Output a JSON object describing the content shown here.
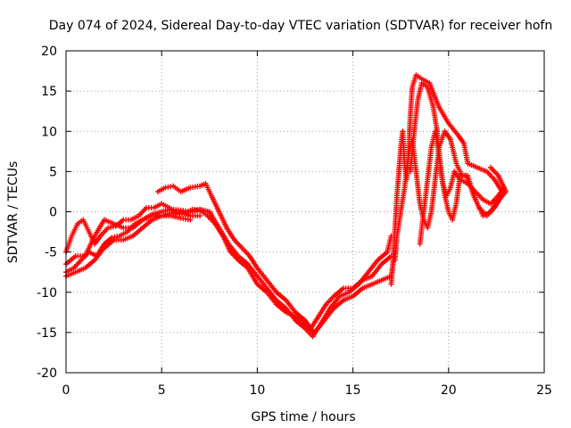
{
  "chart_data": {
    "type": "scatter",
    "title": "Day 074 of 2024, Sidereal Day-to-day VTEC variation (SDTVAR) for receiver hofn",
    "xlabel": "GPS time / hours",
    "ylabel": "SDTVAR / TECUs",
    "xlim": [
      0,
      25
    ],
    "ylim": [
      -20,
      20
    ],
    "xticks": [
      0,
      5,
      10,
      15,
      20,
      25
    ],
    "yticks": [
      -20,
      -15,
      -10,
      -5,
      0,
      5,
      10,
      15,
      20
    ],
    "grid": true,
    "marker": "plus",
    "color": "#ff0000",
    "series": [
      {
        "name": "satellite-track-1",
        "points": [
          [
            0.0,
            -5.0
          ],
          [
            0.3,
            -3.0
          ],
          [
            0.6,
            -1.5
          ],
          [
            0.9,
            -1.0
          ],
          [
            1.2,
            -2.5
          ],
          [
            1.5,
            -4.0
          ],
          [
            1.8,
            -3.0
          ],
          [
            2.2,
            -2.0
          ],
          [
            2.6,
            -1.8
          ],
          [
            3.0,
            -1.0
          ],
          [
            3.4,
            -1.0
          ],
          [
            3.8,
            -0.5
          ],
          [
            4.2,
            0.5
          ],
          [
            4.6,
            0.5
          ],
          [
            5.0,
            1.0
          ],
          [
            5.4,
            0.5
          ],
          [
            5.8,
            -0.2
          ],
          [
            6.2,
            -0.3
          ],
          [
            6.6,
            0.3
          ],
          [
            7.0,
            0.2
          ]
        ]
      },
      {
        "name": "satellite-track-2",
        "points": [
          [
            0.0,
            -7.5
          ],
          [
            0.4,
            -7.0
          ],
          [
            0.8,
            -6.0
          ],
          [
            1.2,
            -5.0
          ],
          [
            1.6,
            -5.5
          ],
          [
            2.0,
            -4.0
          ],
          [
            2.4,
            -3.2
          ],
          [
            2.8,
            -3.0
          ],
          [
            3.2,
            -2.5
          ],
          [
            3.6,
            -1.5
          ],
          [
            4.0,
            -1.0
          ],
          [
            4.5,
            -0.3
          ],
          [
            5.0,
            0.0
          ],
          [
            5.5,
            0.3
          ],
          [
            6.0,
            0.2
          ],
          [
            6.5,
            0.0
          ],
          [
            7.0,
            0.3
          ],
          [
            7.5,
            0.0
          ]
        ]
      },
      {
        "name": "satellite-track-3",
        "points": [
          [
            0.0,
            -6.5
          ],
          [
            0.5,
            -5.5
          ],
          [
            1.0,
            -5.5
          ],
          [
            1.5,
            -3.0
          ],
          [
            2.0,
            -1.0
          ],
          [
            2.5,
            -1.5
          ],
          [
            3.0,
            -2.0
          ],
          [
            3.5,
            -2.0
          ],
          [
            4.0,
            -1.0
          ],
          [
            4.5,
            -0.5
          ],
          [
            5.0,
            -0.5
          ],
          [
            5.5,
            -0.2
          ],
          [
            6.0,
            0.0
          ],
          [
            6.5,
            -0.5
          ],
          [
            7.0,
            -0.5
          ]
        ]
      },
      {
        "name": "satellite-track-4",
        "points": [
          [
            0.0,
            -8.0
          ],
          [
            0.5,
            -7.5
          ],
          [
            1.0,
            -7.0
          ],
          [
            1.5,
            -6.0
          ],
          [
            2.0,
            -4.5
          ],
          [
            2.5,
            -3.5
          ],
          [
            3.0,
            -3.5
          ],
          [
            3.5,
            -3.0
          ],
          [
            4.0,
            -2.0
          ],
          [
            4.5,
            -1.0
          ],
          [
            5.0,
            -0.5
          ],
          [
            5.5,
            -0.5
          ],
          [
            6.0,
            -0.8
          ],
          [
            6.5,
            -1.0
          ]
        ]
      },
      {
        "name": "satellite-track-5",
        "points": [
          [
            4.8,
            2.5
          ],
          [
            5.2,
            3.0
          ],
          [
            5.6,
            3.2
          ],
          [
            6.0,
            2.5
          ],
          [
            6.5,
            3.0
          ],
          [
            7.0,
            3.2
          ],
          [
            7.3,
            3.5
          ],
          [
            7.6,
            2.0
          ],
          [
            8.0,
            0.0
          ],
          [
            8.4,
            -2.0
          ],
          [
            8.8,
            -3.5
          ],
          [
            9.2,
            -4.5
          ],
          [
            9.6,
            -5.5
          ],
          [
            10.0,
            -7.0
          ],
          [
            10.5,
            -8.5
          ],
          [
            11.0,
            -10.0
          ],
          [
            11.5,
            -11.0
          ],
          [
            12.0,
            -12.5
          ],
          [
            12.5,
            -13.5
          ],
          [
            12.8,
            -14.5
          ],
          [
            13.2,
            -13.0
          ],
          [
            13.6,
            -11.5
          ],
          [
            14.0,
            -10.5
          ],
          [
            14.5,
            -9.5
          ],
          [
            15.0,
            -9.5
          ],
          [
            15.5,
            -8.5
          ],
          [
            16.0,
            -8.0
          ],
          [
            16.5,
            -6.5
          ],
          [
            17.0,
            -5.5
          ]
        ]
      },
      {
        "name": "satellite-track-6",
        "points": [
          [
            7.0,
            0.2
          ],
          [
            7.4,
            -0.5
          ],
          [
            7.8,
            -1.5
          ],
          [
            8.2,
            -3.0
          ],
          [
            8.6,
            -5.0
          ],
          [
            9.0,
            -6.0
          ],
          [
            9.5,
            -7.0
          ],
          [
            10.0,
            -9.0
          ],
          [
            10.5,
            -10.0
          ],
          [
            11.0,
            -11.5
          ],
          [
            11.5,
            -12.5
          ],
          [
            12.0,
            -13.0
          ],
          [
            12.5,
            -14.0
          ],
          [
            13.0,
            -15.0
          ],
          [
            13.5,
            -13.5
          ],
          [
            14.0,
            -12.0
          ],
          [
            14.5,
            -11.0
          ],
          [
            15.0,
            -10.5
          ],
          [
            15.5,
            -9.5
          ],
          [
            16.0,
            -9.0
          ],
          [
            16.5,
            -8.5
          ],
          [
            17.0,
            -8.0
          ],
          [
            17.2,
            -5.0
          ]
        ]
      },
      {
        "name": "satellite-track-7",
        "points": [
          [
            7.5,
            0.0
          ],
          [
            8.0,
            -2.0
          ],
          [
            8.5,
            -4.0
          ],
          [
            9.0,
            -5.5
          ],
          [
            9.5,
            -6.5
          ],
          [
            10.0,
            -8.0
          ],
          [
            10.5,
            -9.5
          ],
          [
            11.0,
            -11.0
          ],
          [
            11.5,
            -12.0
          ],
          [
            12.0,
            -13.5
          ],
          [
            12.5,
            -14.5
          ],
          [
            12.9,
            -15.5
          ],
          [
            13.3,
            -14.0
          ],
          [
            13.8,
            -12.0
          ],
          [
            14.3,
            -10.5
          ],
          [
            14.8,
            -10.0
          ],
          [
            15.3,
            -9.0
          ],
          [
            15.8,
            -7.5
          ],
          [
            16.3,
            -6.0
          ],
          [
            16.8,
            -5.0
          ],
          [
            17.0,
            -3.0
          ]
        ]
      },
      {
        "name": "satellite-track-8",
        "points": [
          [
            17.0,
            -9.0
          ],
          [
            17.1,
            -6.0
          ],
          [
            17.2,
            -2.0
          ],
          [
            17.3,
            2.0
          ],
          [
            17.4,
            5.0
          ],
          [
            17.5,
            8.0
          ],
          [
            17.6,
            10.0
          ],
          [
            17.7,
            6.0
          ],
          [
            17.8,
            4.0
          ],
          [
            17.9,
            7.0
          ],
          [
            18.0,
            12.0
          ],
          [
            18.1,
            15.5
          ],
          [
            18.3,
            17.0
          ],
          [
            18.6,
            16.5
          ],
          [
            19.0,
            16.0
          ],
          [
            19.5,
            13.0
          ],
          [
            20.0,
            11.0
          ],
          [
            20.5,
            9.5
          ],
          [
            20.8,
            8.5
          ],
          [
            21.0,
            6.0
          ],
          [
            21.5,
            5.5
          ],
          [
            22.0,
            5.0
          ],
          [
            22.4,
            4.0
          ],
          [
            22.8,
            2.5
          ]
        ]
      },
      {
        "name": "satellite-track-9",
        "points": [
          [
            17.2,
            -6.0
          ],
          [
            17.3,
            -3.0
          ],
          [
            17.5,
            0.0
          ],
          [
            17.7,
            3.0
          ],
          [
            17.9,
            7.0
          ],
          [
            18.1,
            9.0
          ],
          [
            18.3,
            5.0
          ],
          [
            18.5,
            1.0
          ],
          [
            18.7,
            -1.0
          ],
          [
            18.9,
            -2.0
          ],
          [
            19.1,
            0.0
          ],
          [
            19.3,
            4.0
          ],
          [
            19.5,
            8.0
          ],
          [
            19.8,
            10.0
          ],
          [
            20.1,
            9.0
          ],
          [
            20.4,
            6.0
          ],
          [
            20.7,
            4.5
          ],
          [
            21.0,
            4.5
          ],
          [
            21.3,
            2.0
          ],
          [
            21.6,
            0.5
          ],
          [
            22.0,
            -0.5
          ],
          [
            22.4,
            0.5
          ],
          [
            22.8,
            2.0
          ]
        ]
      },
      {
        "name": "satellite-track-10",
        "points": [
          [
            18.0,
            5.0
          ],
          [
            18.2,
            10.0
          ],
          [
            18.4,
            14.0
          ],
          [
            18.6,
            16.0
          ],
          [
            18.9,
            15.5
          ],
          [
            19.2,
            13.0
          ],
          [
            19.4,
            10.0
          ],
          [
            19.6,
            5.0
          ],
          [
            19.8,
            2.0
          ],
          [
            20.0,
            0.0
          ],
          [
            20.2,
            -1.0
          ],
          [
            20.4,
            1.0
          ],
          [
            20.6,
            4.5
          ],
          [
            20.9,
            4.5
          ],
          [
            21.2,
            3.0
          ],
          [
            21.5,
            1.0
          ],
          [
            21.8,
            -0.5
          ],
          [
            22.2,
            0.0
          ],
          [
            22.6,
            1.5
          ],
          [
            23.0,
            2.5
          ],
          [
            22.6,
            4.5
          ],
          [
            22.2,
            5.5
          ]
        ]
      },
      {
        "name": "satellite-track-11",
        "points": [
          [
            18.5,
            -4.0
          ],
          [
            18.7,
            0.0
          ],
          [
            18.9,
            4.0
          ],
          [
            19.1,
            8.0
          ],
          [
            19.3,
            10.0
          ],
          [
            19.5,
            7.0
          ],
          [
            19.7,
            3.5
          ],
          [
            19.9,
            2.0
          ],
          [
            20.1,
            3.0
          ],
          [
            20.3,
            5.0
          ],
          [
            20.6,
            4.0
          ],
          [
            21.0,
            3.5
          ],
          [
            21.4,
            2.5
          ],
          [
            21.8,
            1.5
          ],
          [
            22.2,
            1.0
          ],
          [
            22.6,
            2.0
          ],
          [
            22.9,
            3.0
          ]
        ]
      }
    ]
  }
}
